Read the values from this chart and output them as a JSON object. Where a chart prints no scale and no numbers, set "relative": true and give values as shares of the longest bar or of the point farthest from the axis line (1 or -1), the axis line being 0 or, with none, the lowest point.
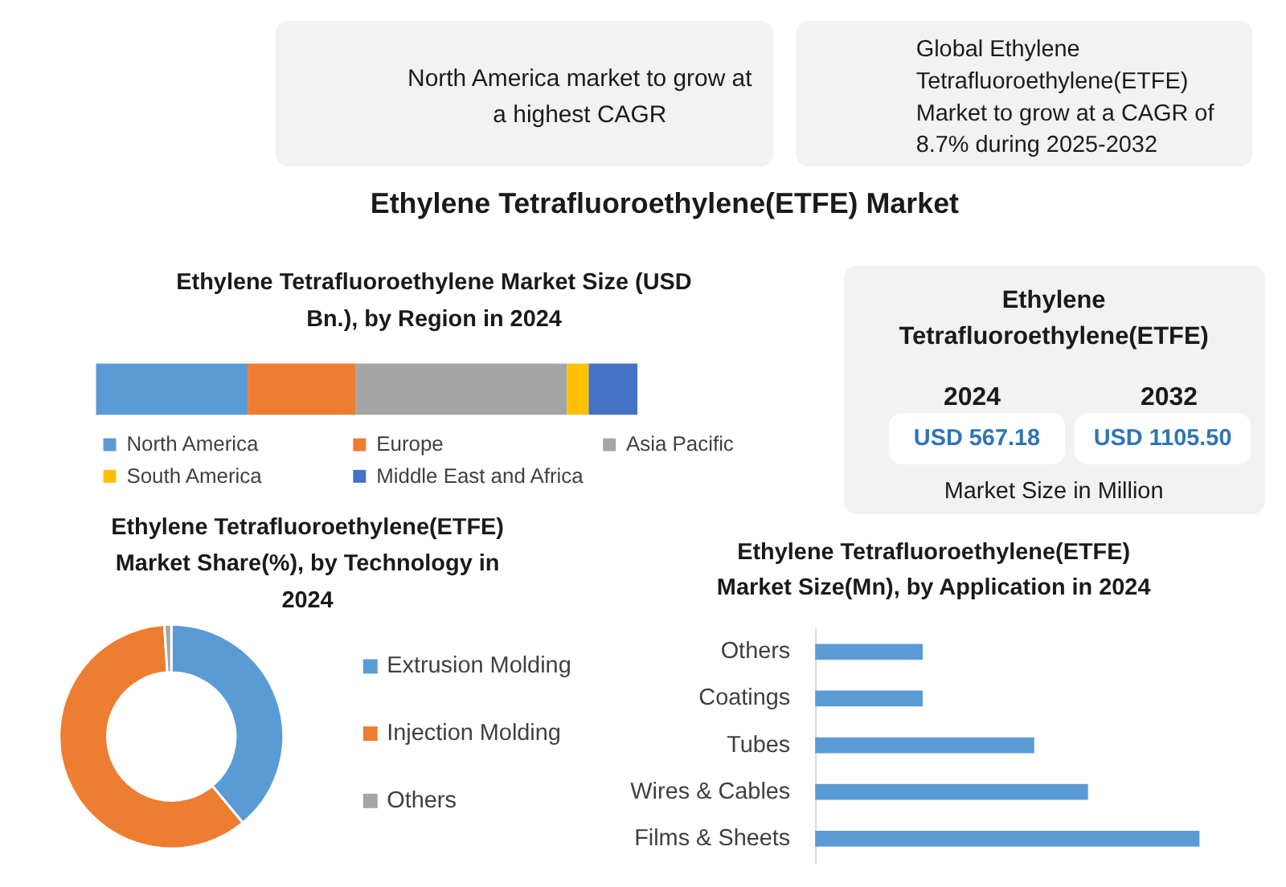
{
  "chart_data": [
    {
      "type": "other",
      "title": "Ethylene Tetrafluoroethylene(ETFE) Market",
      "annotations": [
        "North America market to grow at a highest CAGR",
        "Global Ethylene Tetrafluoroethylene(ETFE) Market to grow at a CAGR of 8.7% during 2025-2032"
      ]
    },
    {
      "type": "bar",
      "title": "Ethylene Tetrafluoroethylene Market Size (USD Bn.), by Region in 2024",
      "orientation": "horizontal",
      "stacked": true,
      "relative": true,
      "legend": "bottom",
      "categories": [
        null
      ],
      "series": [
        {
          "name": "North America",
          "color": "#5b9bd5",
          "values": [
            0.28
          ]
        },
        {
          "name": "Europe",
          "color": "#ed7d31",
          "values": [
            0.2
          ]
        },
        {
          "name": "Asia Pacific",
          "color": "#a5a5a5",
          "values": [
            0.39
          ]
        },
        {
          "name": "South America",
          "color": "#ffc000",
          "values": [
            0.04
          ]
        },
        {
          "name": "Middle East and Africa",
          "color": "#4472c4",
          "values": [
            0.09
          ]
        }
      ]
    },
    {
      "type": "other",
      "title": "Ethylene Tetrafluoroethylene(ETFE)",
      "annotations": [
        "2024",
        "2032",
        "USD 567.18",
        "USD 1105.50",
        "Market Size in Million"
      ]
    },
    {
      "type": "donut",
      "title": "Ethylene Tetrafluoroethylene(ETFE) Market Share(%), by Technology in 2024",
      "legend": "right",
      "categories": [
        "Extrusion Molding",
        "Injection Molding",
        "Others"
      ],
      "values": [
        39,
        60,
        1
      ],
      "colors": [
        "#5b9bd5",
        "#ed7d31",
        "#a5a5a5"
      ]
    },
    {
      "type": "bar",
      "title": "Ethylene Tetrafluoroethylene(ETFE) Market Size(Mn), by Application in 2024",
      "orientation": "horizontal",
      "relative": true,
      "categories": [
        "Others",
        "Coatings",
        "Tubes",
        "Wires & Cables",
        "Films & Sheets"
      ],
      "values": [
        0.28,
        0.28,
        0.57,
        0.71,
        1
      ],
      "color": "#5b9bd5"
    }
  ]
}
